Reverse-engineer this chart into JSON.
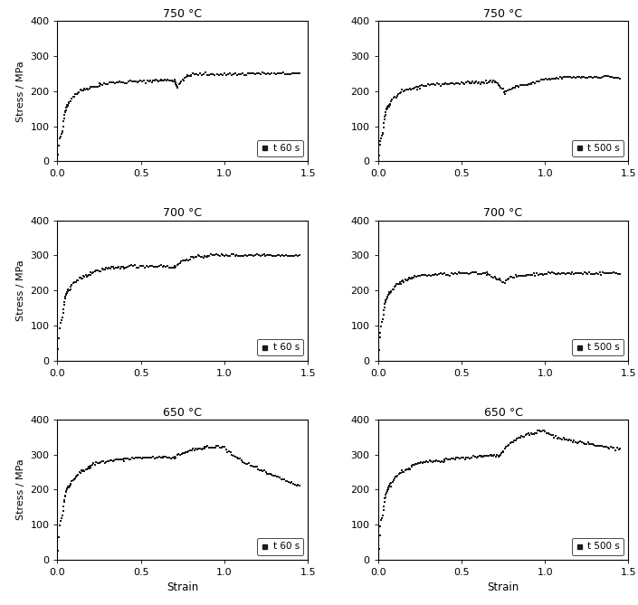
{
  "titles": [
    "750 °C",
    "750 °C",
    "700 °C",
    "700 °C",
    "650 °C",
    "650 °C"
  ],
  "legends": [
    "t 60 s",
    "t 500 s",
    "t 60 s",
    "t 500 s",
    "t 60 s",
    "t 500 s"
  ],
  "xlabel": "Strain",
  "ylabel": "Stress / MPa",
  "xlim": [
    0,
    1.5
  ],
  "ylim": [
    0,
    400
  ],
  "xticks": [
    0,
    0.5,
    1.0,
    1.5
  ],
  "yticks": [
    0,
    100,
    200,
    300,
    400
  ],
  "background_color": "#ffffff",
  "line_color": "#1a1a1a",
  "marker": "s",
  "markersize": 1.8,
  "linewidth": 0.0,
  "figsize": [
    7.05,
    6.69
  ],
  "dpi": 100
}
